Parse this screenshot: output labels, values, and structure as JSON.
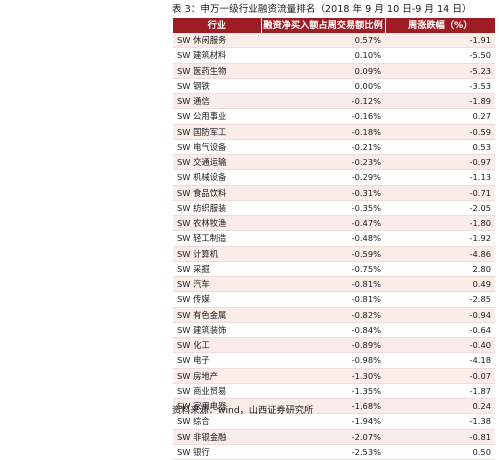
{
  "caption": "表 3：申万一级行业融资流量排名（2018 年 9 月 10 日-9 月 14 日）",
  "table": {
    "headers": [
      "行业",
      "融资净买入额占周交易额比例",
      "周涨跌幅（%）"
    ],
    "rows": [
      {
        "name": "SW 休闲服务",
        "ratio": "0.57%",
        "change": "-1.91"
      },
      {
        "name": "SW 建筑材料",
        "ratio": "0.10%",
        "change": "-5.50"
      },
      {
        "name": "SW 医药生物",
        "ratio": "0.09%",
        "change": "-5.23"
      },
      {
        "name": "SW 钢铁",
        "ratio": "0.00%",
        "change": "-3.53"
      },
      {
        "name": "SW 通信",
        "ratio": "-0.12%",
        "change": "-1.89"
      },
      {
        "name": "SW 公用事业",
        "ratio": "-0.16%",
        "change": "0.27"
      },
      {
        "name": "SW 国防军工",
        "ratio": "-0.18%",
        "change": "-0.59"
      },
      {
        "name": "SW 电气设备",
        "ratio": "-0.21%",
        "change": "0.53"
      },
      {
        "name": "SW 交通运输",
        "ratio": "-0.23%",
        "change": "-0.97"
      },
      {
        "name": "SW 机械设备",
        "ratio": "-0.29%",
        "change": "-1.13"
      },
      {
        "name": "SW 食品饮料",
        "ratio": "-0.31%",
        "change": "-0.71"
      },
      {
        "name": "SW 纺织服装",
        "ratio": "-0.35%",
        "change": "-2.05"
      },
      {
        "name": "SW 农林牧渔",
        "ratio": "-0.47%",
        "change": "-1.80"
      },
      {
        "name": "SW 轻工制造",
        "ratio": "-0.48%",
        "change": "-1.92"
      },
      {
        "name": "SW 计算机",
        "ratio": "-0.59%",
        "change": "-4.86"
      },
      {
        "name": "SW 采掘",
        "ratio": "-0.75%",
        "change": "2.80"
      },
      {
        "name": "SW 汽车",
        "ratio": "-0.81%",
        "change": "0.49"
      },
      {
        "name": "SW 传媒",
        "ratio": "-0.81%",
        "change": "-2.85"
      },
      {
        "name": "SW 有色金属",
        "ratio": "-0.82%",
        "change": "-0.94"
      },
      {
        "name": "SW 建筑装饰",
        "ratio": "-0.84%",
        "change": "-0.64"
      },
      {
        "name": "SW 化工",
        "ratio": "-0.89%",
        "change": "-0.40"
      },
      {
        "name": "SW 电子",
        "ratio": "-0.98%",
        "change": "-4.18"
      },
      {
        "name": "SW 房地产",
        "ratio": "-1.30%",
        "change": "-0.07"
      },
      {
        "name": "SW 商业贸易",
        "ratio": "-1.35%",
        "change": "-1.87"
      },
      {
        "name": "SW 家用电器",
        "ratio": "-1.68%",
        "change": "0.24"
      },
      {
        "name": "SW 综合",
        "ratio": "-1.94%",
        "change": "-1.38"
      },
      {
        "name": "SW 非银金融",
        "ratio": "-2.07%",
        "change": "-0.81"
      },
      {
        "name": "SW 银行",
        "ratio": "-2.53%",
        "change": "0.50"
      }
    ]
  },
  "source": "资料来源：wind，山西证券研究所",
  "colors": {
    "header_bg": "#9e1c24",
    "stripe_bg": "#f9ece9"
  }
}
